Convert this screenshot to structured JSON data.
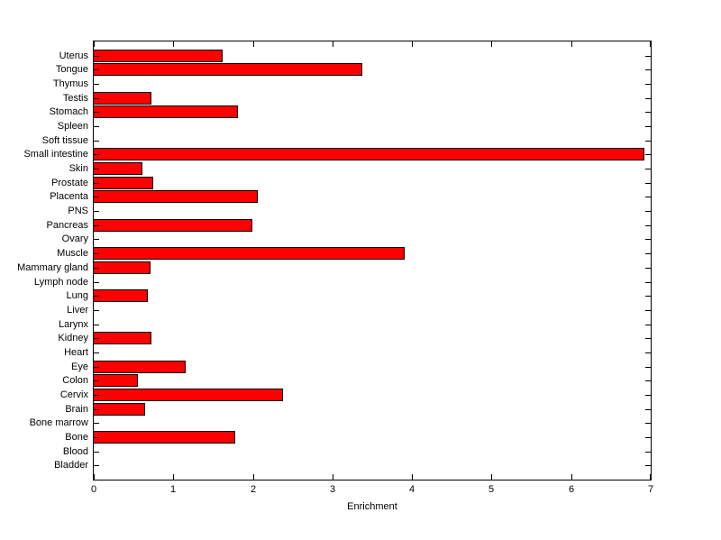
{
  "chart_data": {
    "type": "bar",
    "orientation": "horizontal",
    "title": "",
    "xlabel": "Enrichment",
    "ylabel": "",
    "xlim": [
      0,
      7
    ],
    "x_ticks": [
      "0",
      "1",
      "2",
      "3",
      "4",
      "5",
      "6",
      "7"
    ],
    "grid": false,
    "legend": "none",
    "bar_color": "#ff0000",
    "bar_edge_color": "#000000",
    "background_color": "#ffffff",
    "categories": [
      "Uterus",
      "Tongue",
      "Thymus",
      "Testis",
      "Stomach",
      "Spleen",
      "Soft tissue",
      "Small intestine",
      "Skin",
      "Prostate",
      "Placenta",
      "PNS",
      "Pancreas",
      "Ovary",
      "Muscle",
      "Mammary gland",
      "Lymph node",
      "Lung",
      "Liver",
      "Larynx",
      "Kidney",
      "Heart",
      "Eye",
      "Colon",
      "Cervix",
      "Brain",
      "Bone marrow",
      "Bone",
      "Blood",
      "Bladder"
    ],
    "values": [
      1.62,
      3.38,
      0,
      0.73,
      1.81,
      0,
      0,
      6.92,
      0.61,
      0.75,
      2.06,
      0,
      1.99,
      0,
      3.91,
      0.71,
      0,
      0.68,
      0,
      0,
      0.72,
      0,
      1.16,
      0.55,
      2.38,
      0.64,
      0,
      1.78,
      0,
      0
    ]
  }
}
